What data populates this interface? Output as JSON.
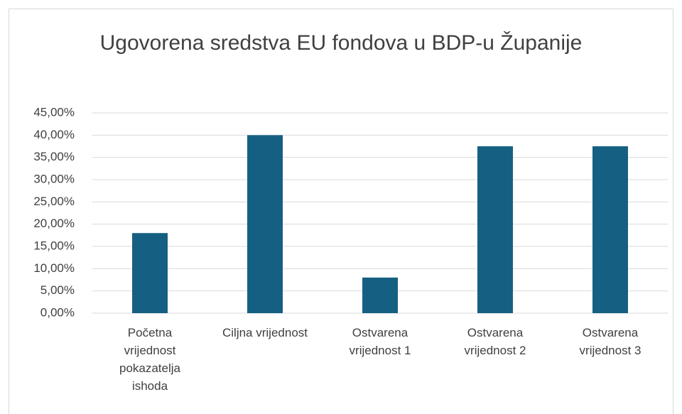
{
  "chart_data": {
    "type": "bar",
    "title": "Ugovorena sredstva EU fondova u BDP-u Županije",
    "categories": [
      "Početna vrijednost pokazatelja ishoda",
      "Ciljna vrijednost",
      "Ostvarena vrijednost 1",
      "Ostvarena vrijednost 2",
      "Ostvarena vrijednost 3"
    ],
    "values": [
      18,
      40,
      8,
      37.5,
      37.5
    ],
    "color": "#156082",
    "ylim": [
      0,
      45
    ],
    "yticks": [
      {
        "value": 0,
        "label": "0,00%"
      },
      {
        "value": 5,
        "label": "5,00%"
      },
      {
        "value": 10,
        "label": "10,00%"
      },
      {
        "value": 15,
        "label": "15,00%"
      },
      {
        "value": 20,
        "label": "20,00%"
      },
      {
        "value": 25,
        "label": "25,00%"
      },
      {
        "value": 30,
        "label": "30,00%"
      },
      {
        "value": 35,
        "label": "35,00%"
      },
      {
        "value": 40,
        "label": "40,00%"
      },
      {
        "value": 45,
        "label": "45,00%"
      }
    ],
    "grid": true
  }
}
